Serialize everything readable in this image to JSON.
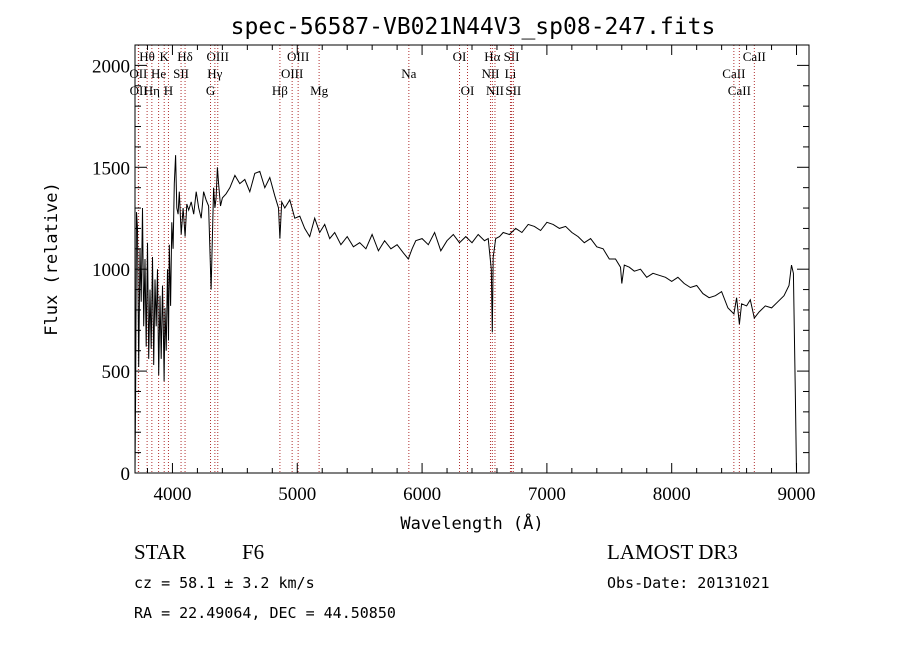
{
  "chart_data": {
    "type": "line",
    "title": "spec-56587-VB021N44V3_sp08-247.fits",
    "xlabel": "Wavelength (Å)",
    "ylabel": "Flux (relative)",
    "xlim": [
      3700,
      9100
    ],
    "ylim": [
      0,
      2100
    ],
    "x_ticks": [
      4000,
      5000,
      6000,
      7000,
      8000,
      9000
    ],
    "y_ticks": [
      0,
      500,
      1000,
      1500,
      2000
    ],
    "series": [
      {
        "name": "flux",
        "x": [
          3700,
          3705,
          3712,
          3720,
          3730,
          3740,
          3750,
          3760,
          3770,
          3780,
          3790,
          3800,
          3810,
          3820,
          3830,
          3840,
          3850,
          3860,
          3870,
          3880,
          3890,
          3900,
          3910,
          3920,
          3930,
          3933,
          3940,
          3950,
          3960,
          3968,
          3975,
          3985,
          3995,
          4005,
          4015,
          4025,
          4035,
          4045,
          4055,
          4070,
          4085,
          4101,
          4115,
          4130,
          4150,
          4170,
          4190,
          4210,
          4230,
          4250,
          4270,
          4290,
          4310,
          4330,
          4340,
          4350,
          4360,
          4370,
          4385,
          4400,
          4430,
          4460,
          4500,
          4540,
          4580,
          4620,
          4660,
          4700,
          4740,
          4780,
          4820,
          4850,
          4861,
          4875,
          4900,
          4940,
          4980,
          5020,
          5060,
          5100,
          5140,
          5180,
          5220,
          5260,
          5300,
          5350,
          5400,
          5450,
          5500,
          5550,
          5600,
          5650,
          5700,
          5750,
          5800,
          5850,
          5890,
          5920,
          5950,
          6000,
          6050,
          6100,
          6150,
          6200,
          6250,
          6300,
          6350,
          6400,
          6450,
          6500,
          6530,
          6555,
          6563,
          6570,
          6590,
          6620,
          6650,
          6700,
          6750,
          6800,
          6850,
          6900,
          6950,
          7000,
          7050,
          7100,
          7150,
          7200,
          7250,
          7300,
          7350,
          7400,
          7450,
          7500,
          7550,
          7590,
          7600,
          7620,
          7660,
          7700,
          7750,
          7800,
          7850,
          7900,
          7950,
          8000,
          8050,
          8100,
          8150,
          8200,
          8250,
          8300,
          8350,
          8400,
          8450,
          8498,
          8520,
          8542,
          8560,
          8600,
          8630,
          8662,
          8700,
          8750,
          8800,
          8850,
          8900,
          8940,
          8960,
          8975,
          8990,
          9000
        ],
        "y": [
          0,
          380,
          1280,
          1200,
          520,
          1100,
          840,
          1300,
          720,
          1050,
          620,
          1130,
          560,
          900,
          610,
          1060,
          530,
          950,
          720,
          1000,
          480,
          870,
          560,
          920,
          600,
          450,
          810,
          600,
          1000,
          650,
          1120,
          820,
          1230,
          1100,
          1420,
          1560,
          1300,
          1270,
          1380,
          1170,
          1300,
          1160,
          1320,
          1290,
          1330,
          1270,
          1380,
          1300,
          1250,
          1380,
          1340,
          1310,
          900,
          1400,
          1300,
          1350,
          1500,
          1420,
          1310,
          1350,
          1370,
          1400,
          1460,
          1420,
          1440,
          1380,
          1470,
          1480,
          1400,
          1450,
          1360,
          1300,
          1150,
          1330,
          1300,
          1340,
          1250,
          1260,
          1200,
          1160,
          1250,
          1180,
          1220,
          1150,
          1180,
          1120,
          1160,
          1110,
          1130,
          1100,
          1170,
          1090,
          1140,
          1100,
          1120,
          1080,
          1050,
          1100,
          1140,
          1150,
          1120,
          1180,
          1090,
          1140,
          1170,
          1130,
          1160,
          1130,
          1170,
          1140,
          1150,
          1000,
          690,
          1060,
          1150,
          1160,
          1180,
          1170,
          1200,
          1180,
          1220,
          1210,
          1190,
          1230,
          1220,
          1200,
          1210,
          1180,
          1160,
          1130,
          1150,
          1110,
          1100,
          1050,
          1050,
          1010,
          930,
          1020,
          1010,
          990,
          1000,
          960,
          980,
          970,
          960,
          940,
          960,
          930,
          910,
          920,
          880,
          860,
          870,
          890,
          810,
          780,
          860,
          730,
          830,
          820,
          850,
          760,
          790,
          820,
          810,
          840,
          870,
          920,
          1020,
          980,
          400,
          0
        ]
      }
    ],
    "lines": [
      {
        "label": "Hθ",
        "x": 3797,
        "row": 1
      },
      {
        "label": "OII",
        "x": 3727,
        "row": 2
      },
      {
        "label": "OII",
        "x": 3729,
        "row": 3
      },
      {
        "label": "He",
        "x": 3889,
        "row": 2
      },
      {
        "label": "Hη",
        "x": 3835,
        "row": 3
      },
      {
        "label": "K",
        "x": 3934,
        "row": 1
      },
      {
        "label": "SII",
        "x": 4069,
        "row": 2
      },
      {
        "label": "H",
        "x": 3968,
        "row": 3
      },
      {
        "label": "Hδ",
        "x": 4101,
        "row": 1
      },
      {
        "label": "OIII",
        "x": 4363,
        "row": 1
      },
      {
        "label": "Hγ",
        "x": 4340,
        "row": 2
      },
      {
        "label": "G",
        "x": 4305,
        "row": 3
      },
      {
        "label": "Hβ",
        "x": 4861,
        "row": 3
      },
      {
        "label": "OIII",
        "x": 5007,
        "row": 1
      },
      {
        "label": "OIII",
        "x": 4959,
        "row": 2
      },
      {
        "label": "Mg",
        "x": 5175,
        "row": 3
      },
      {
        "label": "Na",
        "x": 5894,
        "row": 2
      },
      {
        "label": "OI",
        "x": 6300,
        "row": 1
      },
      {
        "label": "OI",
        "x": 6364,
        "row": 3
      },
      {
        "label": "Hα",
        "x": 6563,
        "row": 1
      },
      {
        "label": "SII",
        "x": 6717,
        "row": 1
      },
      {
        "label": "NII",
        "x": 6548,
        "row": 2
      },
      {
        "label": "Li",
        "x": 6708,
        "row": 2
      },
      {
        "label": "NII",
        "x": 6584,
        "row": 3
      },
      {
        "label": "SII",
        "x": 6731,
        "row": 3
      },
      {
        "label": "CaII",
        "x": 8662,
        "row": 1
      },
      {
        "label": "CaII",
        "x": 8498,
        "row": 2
      },
      {
        "label": "CaII",
        "x": 8542,
        "row": 3
      }
    ]
  },
  "info": {
    "object_class": "STAR",
    "subclass": "F6",
    "survey": "LAMOST DR3",
    "redshift": "cz =  58.1 ± 3.2 km/s",
    "obs_date": "Obs-Date: 20131021",
    "coords": "RA =  22.49064, DEC =  44.50850"
  }
}
